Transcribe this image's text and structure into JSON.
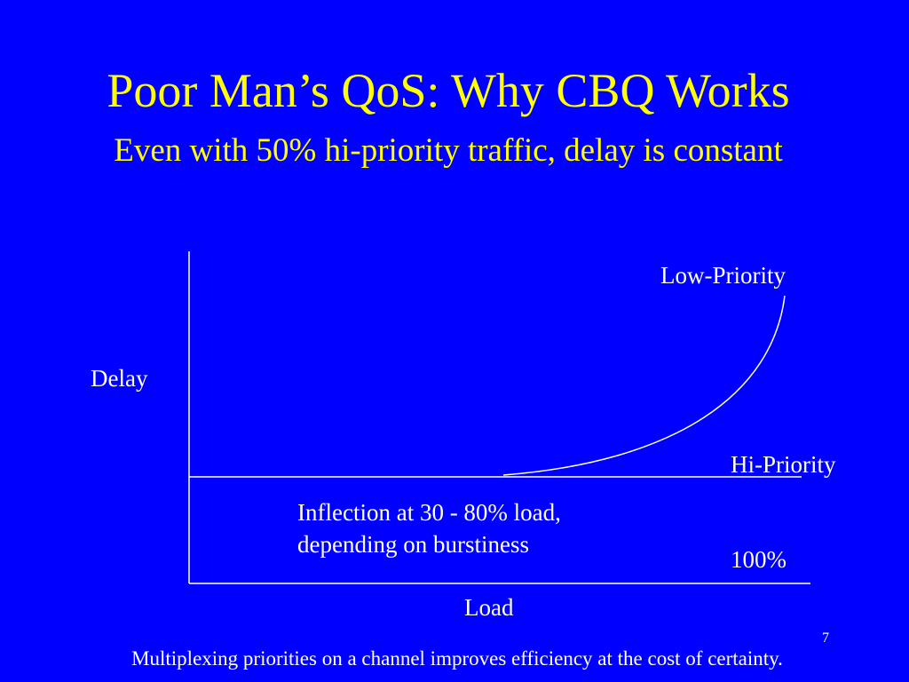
{
  "slide": {
    "title": "Poor Man’s QoS: Why CBQ Works",
    "subtitle": "Even with 50% hi-priority traffic, delay is constant",
    "footer": "Multiplexing priorities on a channel improves efficiency at the cost of certainty.",
    "page_number": "7"
  },
  "diagram": {
    "y_axis_label": "Delay",
    "x_axis_label": "Load",
    "curves": [
      {
        "label": "Low-Priority"
      },
      {
        "label": "Hi-Priority"
      }
    ],
    "capacity_label": "100%",
    "annotation_lines": [
      "Inflection at 30 - 80% load,",
      "depending on burstiness"
    ]
  },
  "colors": {
    "background": "#0000FF",
    "title": "#FFFF00",
    "text": "#FFFFFF",
    "lines": "#FFFFFF"
  }
}
